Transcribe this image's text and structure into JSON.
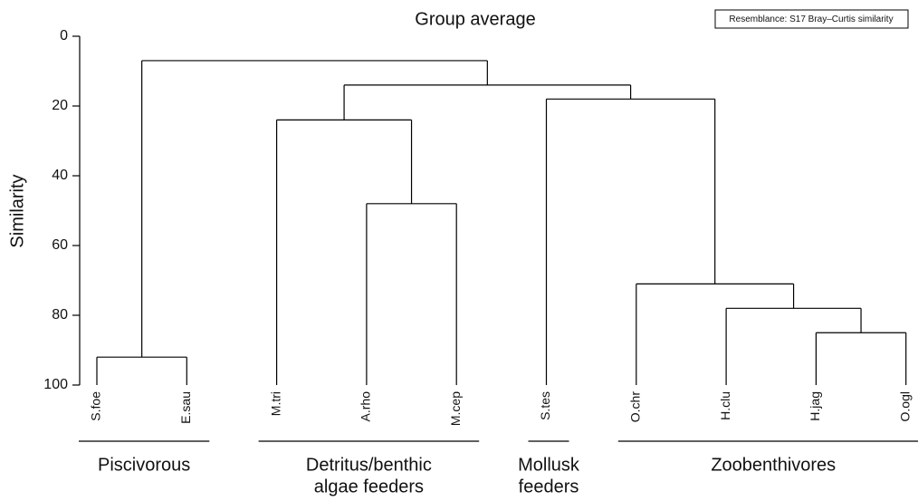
{
  "chart_data": {
    "type": "dendrogram",
    "title": "Group average",
    "note": "Resemblance: S17 Bray–Curtis similarity",
    "ylabel": "Similarity",
    "ylim": [
      0,
      100
    ],
    "yticks": [
      0,
      20,
      40,
      60,
      80,
      100
    ],
    "color": "#000000",
    "tree": {
      "height": 7,
      "children": [
        {
          "height": 92,
          "children": [
            "S.foe",
            "E.sau"
          ]
        },
        {
          "height": 14,
          "children": [
            {
              "height": 24,
              "children": [
                "M.tri",
                {
                  "height": 48,
                  "children": [
                    "A.rho",
                    "M.cep"
                  ]
                }
              ]
            },
            {
              "height": 18,
              "children": [
                "S.tes",
                {
                  "height": 71,
                  "children": [
                    "O.chr",
                    {
                      "height": 78,
                      "children": [
                        "H.clu",
                        {
                          "height": 85,
                          "children": [
                            "H.jag",
                            "O.ogl"
                          ]
                        }
                      ]
                    }
                  ]
                }
              ]
            }
          ]
        }
      ]
    },
    "groups": [
      {
        "label": [
          "Piscivorous"
        ],
        "from": "S.foe",
        "to": "E.sau"
      },
      {
        "label": [
          "Detritus/benthic",
          "algae feeders"
        ],
        "from": "M.tri",
        "to": "M.cep"
      },
      {
        "label": [
          "Mollusk",
          "feeders"
        ],
        "from": "S.tes",
        "to": "S.tes"
      },
      {
        "label": [
          "Zoobenthivores"
        ],
        "from": "O.chr",
        "to": "O.ogl"
      }
    ]
  }
}
